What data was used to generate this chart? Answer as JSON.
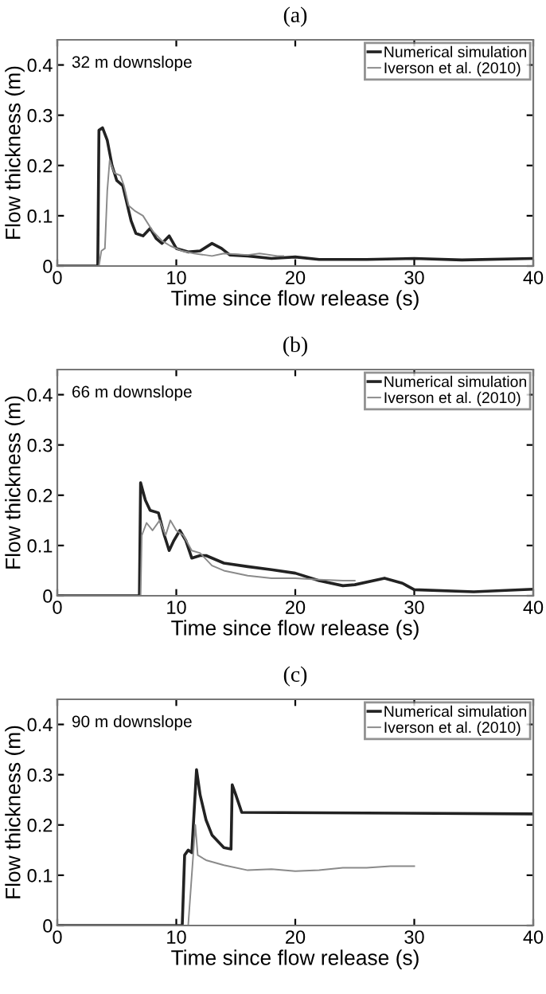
{
  "chart_data": [
    {
      "type": "line",
      "title": "(a)",
      "xlabel": "Time since flow release (s)",
      "ylabel": "Flow thickness (m)",
      "annotations": [
        "32 m downslope"
      ],
      "xlim": [
        0,
        40
      ],
      "ylim": [
        0,
        0.45
      ],
      "xticks": [
        0,
        10,
        20,
        30,
        40
      ],
      "yticks": [
        0,
        0.1,
        0.2,
        0.3,
        0.4
      ],
      "legend": "top right",
      "grid": false,
      "series": [
        {
          "name": "Numerical simulation",
          "color": "#222222",
          "x": [
            0,
            3.4,
            3.5,
            3.8,
            4.2,
            4.6,
            5,
            5.5,
            5.8,
            6.2,
            6.6,
            7.2,
            7.8,
            8.3,
            8.8,
            9.4,
            10,
            11,
            12,
            13,
            13.8,
            14.5,
            16,
            18,
            20,
            22,
            26,
            30,
            34,
            40
          ],
          "values": [
            0,
            0,
            0.27,
            0.275,
            0.25,
            0.2,
            0.17,
            0.16,
            0.13,
            0.09,
            0.065,
            0.06,
            0.075,
            0.055,
            0.045,
            0.06,
            0.035,
            0.028,
            0.03,
            0.045,
            0.035,
            0.022,
            0.02,
            0.015,
            0.018,
            0.013,
            0.013,
            0.015,
            0.012,
            0.015
          ]
        },
        {
          "name": "Iverson et al. (2010)",
          "color": "#8a8a8a",
          "x": [
            0,
            3.5,
            3.7,
            4.0,
            4.2,
            4.4,
            4.8,
            5.3,
            5.6,
            6,
            6.5,
            7.2,
            8,
            8.8,
            9.5,
            10.5,
            11.5,
            13,
            14,
            16,
            17,
            18.5,
            19
          ],
          "values": [
            0,
            0,
            0.03,
            0.035,
            0.15,
            0.21,
            0.185,
            0.18,
            0.16,
            0.12,
            0.11,
            0.1,
            0.07,
            0.05,
            0.04,
            0.03,
            0.025,
            0.02,
            0.025,
            0.022,
            0.025,
            0.02,
            0.02
          ]
        }
      ]
    },
    {
      "type": "line",
      "title": "(b)",
      "xlabel": "Time since flow release (s)",
      "ylabel": "Flow thickness (m)",
      "annotations": [
        "66 m downslope"
      ],
      "xlim": [
        0,
        40
      ],
      "ylim": [
        0,
        0.45
      ],
      "xticks": [
        0,
        10,
        20,
        30,
        40
      ],
      "yticks": [
        0,
        0.1,
        0.2,
        0.3,
        0.4
      ],
      "legend": "top right",
      "grid": false,
      "series": [
        {
          "name": "Numerical simulation",
          "color": "#222222",
          "x": [
            0,
            6.9,
            7.0,
            7.4,
            7.8,
            8.5,
            9,
            9.4,
            9.8,
            10.3,
            10.8,
            11.3,
            12,
            12.5,
            14,
            16,
            18,
            20,
            22,
            24,
            25,
            27.5,
            29,
            30,
            35,
            40
          ],
          "values": [
            0,
            0,
            0.225,
            0.19,
            0.17,
            0.165,
            0.12,
            0.09,
            0.11,
            0.13,
            0.11,
            0.075,
            0.08,
            0.08,
            0.065,
            0.058,
            0.052,
            0.045,
            0.03,
            0.02,
            0.022,
            0.035,
            0.025,
            0.012,
            0.008,
            0.013
          ]
        },
        {
          "name": "Iverson et al. (2010)",
          "color": "#8a8a8a",
          "x": [
            0,
            7.0,
            7.1,
            7.5,
            8,
            8.6,
            9.1,
            9.5,
            10,
            10.6,
            11.3,
            12,
            13,
            14,
            16,
            18,
            20,
            22,
            24,
            25
          ],
          "values": [
            0,
            0,
            0.12,
            0.145,
            0.13,
            0.15,
            0.12,
            0.15,
            0.13,
            0.12,
            0.09,
            0.085,
            0.06,
            0.05,
            0.04,
            0.035,
            0.035,
            0.032,
            0.03,
            0.03
          ]
        }
      ]
    },
    {
      "type": "line",
      "title": "(c)",
      "xlabel": "Time since flow release (s)",
      "ylabel": "Flow thickness (m)",
      "annotations": [
        "90 m downslope"
      ],
      "xlim": [
        0,
        40
      ],
      "ylim": [
        0,
        0.45
      ],
      "xticks": [
        0,
        10,
        20,
        30,
        40
      ],
      "yticks": [
        0,
        0.1,
        0.2,
        0.3,
        0.4
      ],
      "legend": "top right",
      "grid": false,
      "series": [
        {
          "name": "Numerical simulation",
          "color": "#222222",
          "x": [
            0,
            10.5,
            10.7,
            11,
            11.3,
            11.7,
            12,
            12.5,
            13,
            14,
            14.6,
            14.7,
            15,
            15.5,
            40
          ],
          "values": [
            0,
            0,
            0.14,
            0.15,
            0.145,
            0.31,
            0.26,
            0.21,
            0.18,
            0.155,
            0.152,
            0.28,
            0.26,
            0.225,
            0.222
          ]
        },
        {
          "name": "Iverson et al. (2010)",
          "color": "#8a8a8a",
          "x": [
            0,
            11,
            11.3,
            11.6,
            11.8,
            12.5,
            14,
            16,
            18,
            20,
            22,
            24,
            26,
            28,
            30
          ],
          "values": [
            0,
            0,
            0.1,
            0.2,
            0.14,
            0.13,
            0.12,
            0.11,
            0.112,
            0.108,
            0.11,
            0.115,
            0.115,
            0.118,
            0.118
          ]
        }
      ]
    }
  ]
}
